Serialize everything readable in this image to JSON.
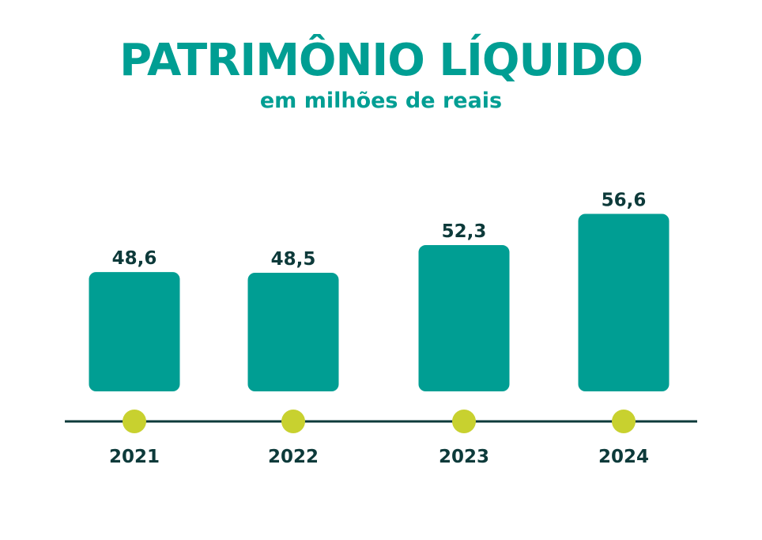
{
  "chart_data": {
    "type": "bar",
    "title": "PATRIMÔNIO LÍQUIDO",
    "subtitle": "em milhões de reais",
    "categories": [
      "2021",
      "2022",
      "2023",
      "2024"
    ],
    "values": [
      48.6,
      48.5,
      52.3,
      56.6
    ],
    "value_labels": [
      "48,6",
      "48,5",
      "52,3",
      "56,6"
    ],
    "xlabel": "",
    "ylabel": "",
    "grid": false,
    "colors": {
      "bar": "#009e93",
      "axis": "#0d3a3a",
      "marker": "#c8d12f",
      "label": "#0d3a3a"
    }
  }
}
